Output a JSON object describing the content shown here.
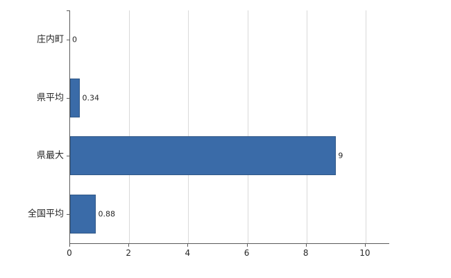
{
  "chart_data": {
    "type": "bar",
    "orientation": "horizontal",
    "title": "",
    "categories": [
      "庄内町",
      "県平均",
      "県最大",
      "全国平均"
    ],
    "values": [
      0,
      0.34,
      9,
      0.88
    ],
    "data_labels": [
      "0",
      "0.34",
      "9",
      "0.88"
    ],
    "x_ticks": [
      0,
      2,
      4,
      6,
      8,
      10
    ],
    "xlim": [
      0,
      10.8
    ],
    "grid": true,
    "legend_position": "none",
    "bar_color": "#3A6BA8",
    "bar_border_color": "#2F5787",
    "gridline_color": "#D9D9D9",
    "axis_color": "#595959",
    "text_color": "#262626"
  }
}
